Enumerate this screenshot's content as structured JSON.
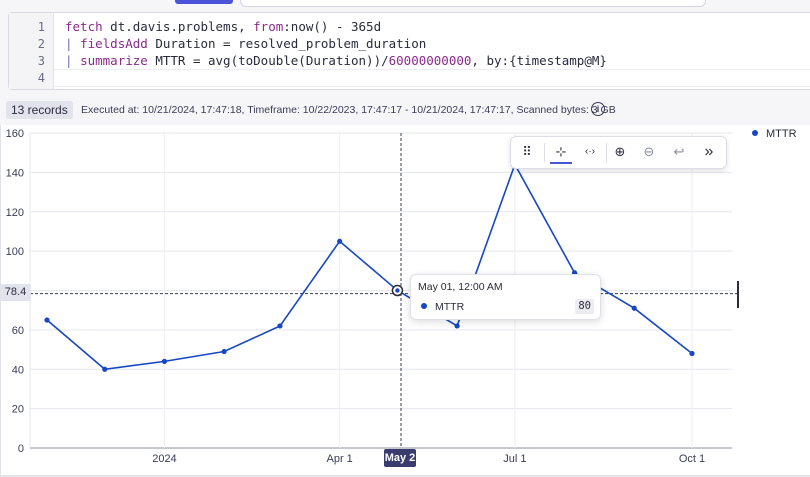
{
  "editor": {
    "lines": [
      {
        "num": "1"
      },
      {
        "num": "2"
      },
      {
        "num": "3"
      },
      {
        "num": "4"
      }
    ],
    "code": {
      "l1_cmd": "fetch",
      "l1_rest": " dt.davis.problems, ",
      "l1_from": "from",
      "l1_tail": ":now() - 365d",
      "l2_pipe": "| ",
      "l2_kw": "fieldsAdd",
      "l2_rest": " Duration = resolved_problem_duration",
      "l3_pipe": "| ",
      "l3_kw": "summarize",
      "l3_rest": " MTTR = avg(toDouble(Duration))/",
      "l3_num": "60000000000",
      "l3_by": ", by:",
      "l3_tail": "{timestamp@M}"
    }
  },
  "status": {
    "records": "13 records",
    "executed": "Executed at: 10/21/2024, 17:47:18, Timeframe: 10/22/2023, 17:47:17 - 10/21/2024, 17:47:17, Scanned bytes: 3 GB",
    "info_icon": "info-icon"
  },
  "toolbar": {
    "icons": [
      "drag-handle-icon",
      "select-zoom-icon",
      "pan-icon",
      "zoom-in-icon",
      "zoom-out-icon",
      "undo-zoom-icon",
      "expand-icon"
    ],
    "glyphs": [
      "⠿",
      "⊹",
      "‹·›",
      "⊕",
      "⊖",
      "↩",
      "»"
    ]
  },
  "legend": {
    "series_name": "MTTR",
    "color": "#1747c4"
  },
  "crosshair": {
    "y_value": "78.4",
    "x_label": "May 2"
  },
  "tooltip": {
    "title": "May 01, 12:00 AM",
    "series": "MTTR",
    "value": "80"
  },
  "chart_data": {
    "type": "line",
    "title": "",
    "xlabel": "",
    "ylabel": "",
    "ylim": [
      0,
      160
    ],
    "yticks": [
      0,
      20,
      40,
      60,
      80,
      100,
      120,
      140,
      160
    ],
    "xticks": [
      {
        "label": "2024",
        "date": "2024-01-01"
      },
      {
        "label": "Apr 1",
        "date": "2024-04-01"
      },
      {
        "label": "Jul 1",
        "date": "2024-07-01"
      },
      {
        "label": "Oct 1",
        "date": "2024-10-01"
      }
    ],
    "xlim": [
      "2023-10-22",
      "2024-10-21"
    ],
    "grid": true,
    "legend_position": "top-right",
    "series": [
      {
        "name": "MTTR",
        "color": "#1747c4",
        "points": [
          {
            "x": "2023-11-01",
            "y": 65
          },
          {
            "x": "2023-12-01",
            "y": 40
          },
          {
            "x": "2024-01-01",
            "y": 44
          },
          {
            "x": "2024-02-01",
            "y": 49
          },
          {
            "x": "2024-03-01",
            "y": 62
          },
          {
            "x": "2024-04-01",
            "y": 105
          },
          {
            "x": "2024-05-01",
            "y": 80
          },
          {
            "x": "2024-06-01",
            "y": 62
          },
          {
            "x": "2024-07-01",
            "y": 144
          },
          {
            "x": "2024-08-01",
            "y": 89
          },
          {
            "x": "2024-09-01",
            "y": 71
          },
          {
            "x": "2024-10-01",
            "y": 48
          }
        ]
      }
    ]
  }
}
